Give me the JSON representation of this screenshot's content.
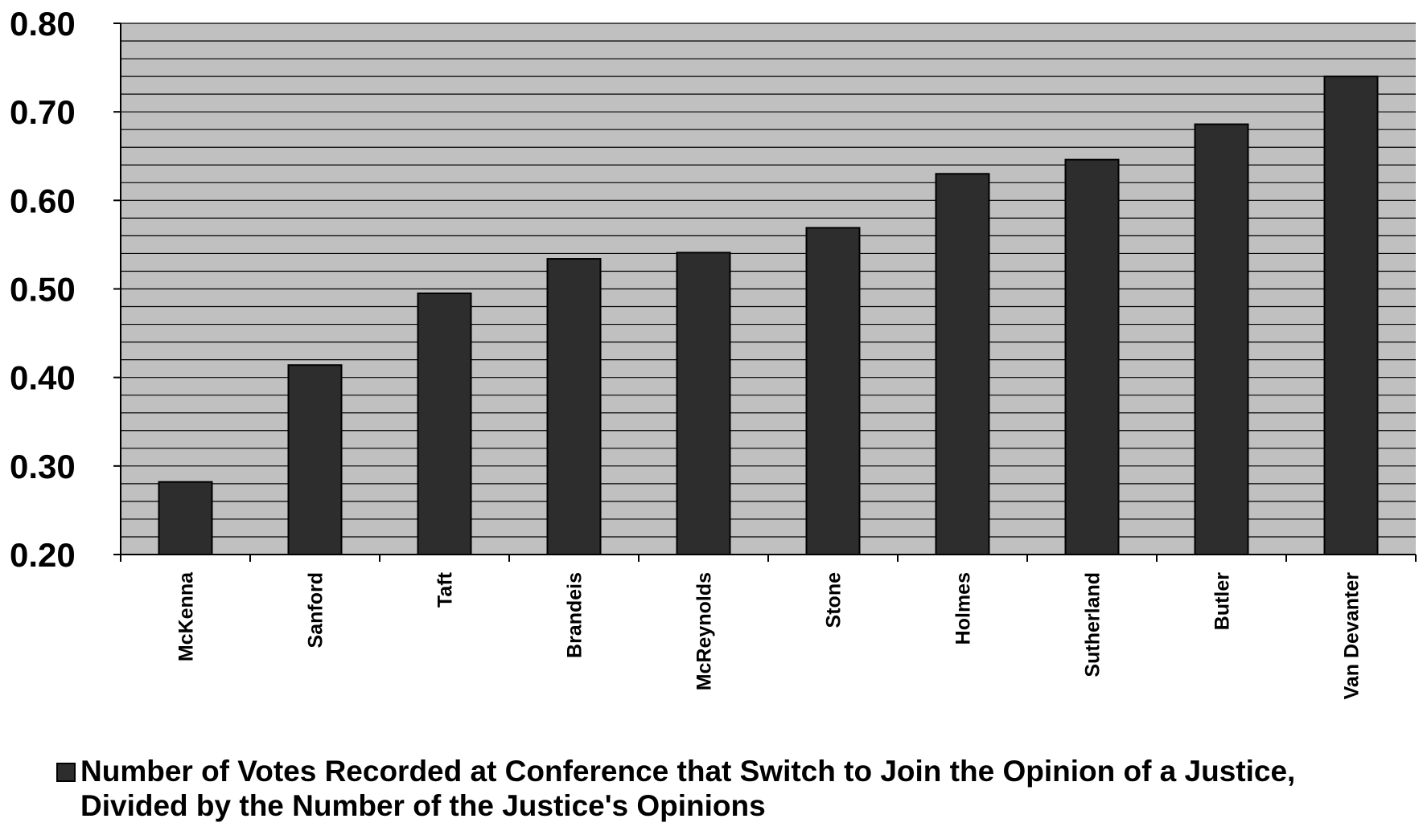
{
  "chart_data": {
    "type": "bar",
    "categories": [
      "McKenna",
      "Sanford",
      "Taft",
      "Brandeis",
      "McReynolds",
      "Stone",
      "Holmes",
      "Sutherland",
      "Butler",
      "Van Devanter"
    ],
    "series": [
      {
        "name": "Number of Votes Recorded at Conference that Switch to Join the Opinion of a Justice, Divided by the Number of the Justice's Opinions",
        "values": [
          0.282,
          0.414,
          0.495,
          0.534,
          0.541,
          0.569,
          0.63,
          0.646,
          0.686,
          0.74
        ]
      }
    ],
    "ylim": [
      0.2,
      0.8
    ],
    "yticks": [
      "0.20",
      "0.30",
      "0.40",
      "0.50",
      "0.60",
      "0.70",
      "0.80"
    ],
    "minor_gridline_step": 0.02,
    "grid": true,
    "legend_position": "bottom",
    "colors": {
      "bar": "#2d2d2d",
      "plot_background": "#c0c0c0",
      "gridline": "#000000"
    }
  }
}
